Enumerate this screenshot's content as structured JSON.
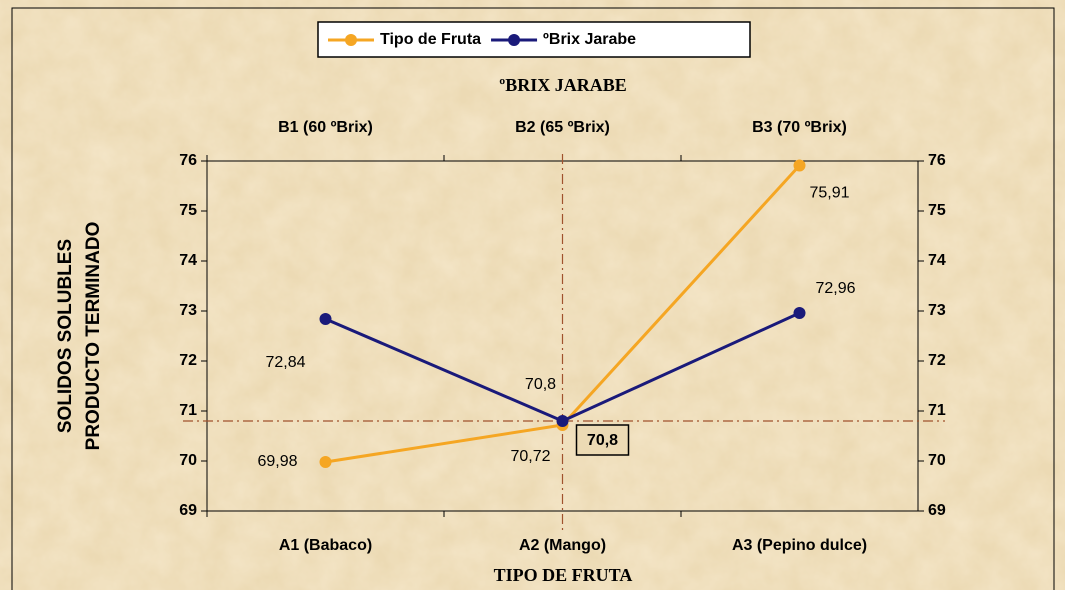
{
  "chart_data": {
    "type": "line",
    "title": "ºBRIX JARABE",
    "x_label": "TIPO DE FRUTA",
    "y_label": [
      "SOLIDOS SOLUBLES",
      "PRODUCTO TERMINADO"
    ],
    "categories": [
      "A1 (Babaco)",
      "A2 (Mango)",
      "A3 (Pepino dulce)"
    ],
    "top_categories": [
      "B1 (60 ºBrix)",
      "B2 (65 ºBrix)",
      "B3 (70 ºBrix)"
    ],
    "series": [
      {
        "name": "Tipo de Fruta",
        "color": "#f5a623",
        "values": [
          69.98,
          70.72,
          75.91
        ],
        "value_labels": [
          "69,98",
          "70,72",
          "75,91"
        ]
      },
      {
        "name": "ºBrix Jarabe",
        "color": "#1a1a7a",
        "values": [
          72.84,
          70.8,
          72.96
        ],
        "value_labels": [
          "72,84",
          "70,8",
          "72,96"
        ]
      }
    ],
    "reference_line": {
      "value": 70.8,
      "label": "70,8",
      "color": "#a0522d"
    },
    "ylim": [
      69,
      76
    ],
    "yticks": [
      69,
      70,
      71,
      72,
      73,
      74,
      75,
      76
    ],
    "legend": "top"
  }
}
